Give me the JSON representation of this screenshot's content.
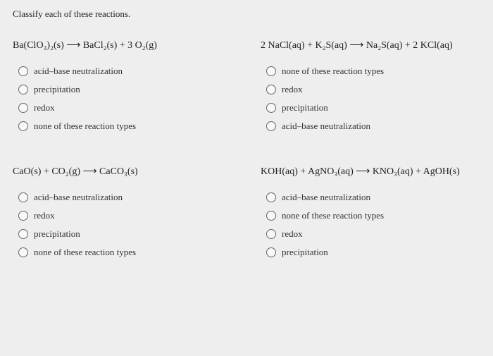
{
  "prompt": "Classify each of these reactions.",
  "questions": [
    {
      "equation": "Ba(ClO₃)₂(s) ⟶ BaCl₂(s) + 3 O₂(g)",
      "options": [
        "acid–base neutralization",
        "precipitation",
        "redox",
        "none of these reaction types"
      ]
    },
    {
      "equation": "2 NaCl(aq) + K₂S(aq) ⟶ Na₂S(aq) + 2 KCl(aq)",
      "options": [
        "none of these reaction types",
        "redox",
        "precipitation",
        "acid–base neutralization"
      ]
    },
    {
      "equation": "CaO(s) + CO₂(g) ⟶ CaCO₃(s)",
      "options": [
        "acid–base neutralization",
        "redox",
        "precipitation",
        "none of these reaction types"
      ]
    },
    {
      "equation": "KOH(aq) + AgNO₃(aq) ⟶ KNO₃(aq) + AgOH(s)",
      "options": [
        "acid–base neutralization",
        "none of these reaction types",
        "redox",
        "precipitation"
      ]
    }
  ],
  "colors": {
    "background": "#eeeeee",
    "text": "#333333",
    "radio_border": "#666666"
  }
}
